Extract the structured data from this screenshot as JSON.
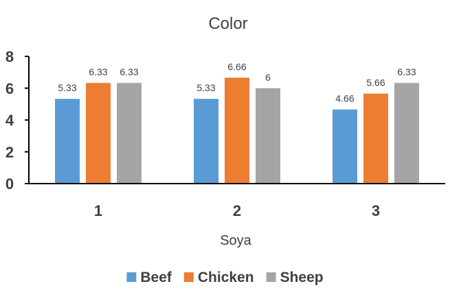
{
  "chart_data": {
    "type": "bar",
    "title": "Color",
    "xlabel": "Soya",
    "ylabel": "",
    "categories": [
      "1",
      "2",
      "3"
    ],
    "ylim": [
      0,
      8
    ],
    "yticks": [
      0,
      2,
      4,
      6,
      8
    ],
    "grid": false,
    "legend_position": "bottom",
    "series": [
      {
        "name": "Beef",
        "color": "#5B9BD5",
        "values": [
          5.33,
          5.33,
          4.66
        ],
        "labels": [
          "5.33",
          "5.33",
          "4.66"
        ]
      },
      {
        "name": "Chicken",
        "color": "#ED7D31",
        "values": [
          6.33,
          6.66,
          5.66
        ],
        "labels": [
          "6.33",
          "6.66",
          "5.66"
        ]
      },
      {
        "name": "Sheep",
        "color": "#A5A5A5",
        "values": [
          6.33,
          6,
          6.33
        ],
        "labels": [
          "6.33",
          "6",
          "6.33"
        ]
      }
    ]
  }
}
